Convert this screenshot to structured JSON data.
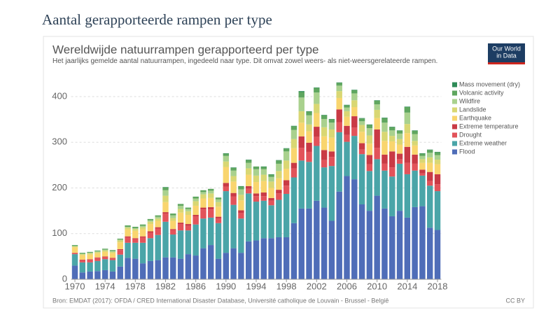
{
  "page_title": "Aantal gerapporteerde rampen per type",
  "chart_data": {
    "type": "bar",
    "stacked": true,
    "title": "Wereldwijde natuurrampen gerapporteerd per type",
    "subtitle": "Het jaarlijks gemelde aantal natuurrampen, ingedeeld naar type. Dit omvat zowel weers- als niet-weersgerelateerde rampen.",
    "logo": [
      "Our World",
      "in Data"
    ],
    "source": "Bron: EMDAT (2017): OFDA / CRED International Disaster Database, Université catholique de Louvain - Brussel - België",
    "license": "CC BY",
    "grid": true,
    "legend": "right",
    "x": [
      1970,
      1971,
      1972,
      1973,
      1974,
      1975,
      1976,
      1977,
      1978,
      1979,
      1980,
      1981,
      1982,
      1983,
      1984,
      1985,
      1986,
      1987,
      1988,
      1989,
      1990,
      1991,
      1992,
      1993,
      1994,
      1995,
      1996,
      1997,
      1998,
      1999,
      2000,
      2001,
      2002,
      2003,
      2004,
      2005,
      2006,
      2007,
      2008,
      2009,
      2010,
      2011,
      2012,
      2013,
      2014,
      2015,
      2016,
      2017,
      2018
    ],
    "xlim": [
      1969.5,
      2018.5
    ],
    "xticks": [
      1970,
      1974,
      1978,
      1982,
      1986,
      1990,
      1994,
      1998,
      2002,
      2006,
      2010,
      2014,
      2018
    ],
    "ylim": [
      0,
      440
    ],
    "yticks": [
      0,
      100,
      200,
      300,
      400
    ],
    "series": [
      {
        "name": "Flood",
        "color": "#4f6db8",
        "values": [
          30,
          15,
          17,
          18,
          20,
          17,
          28,
          47,
          45,
          35,
          40,
          42,
          48,
          48,
          45,
          55,
          52,
          68,
          75,
          45,
          58,
          68,
          58,
          83,
          85,
          90,
          90,
          92,
          92,
          123,
          155,
          155,
          172,
          157,
          128,
          192,
          226,
          219,
          164,
          150,
          183,
          155,
          138,
          150,
          135,
          158,
          160,
          113,
          108
        ]
      },
      {
        "name": "Extreme weather",
        "color": "#4aa5a8",
        "values": [
          25,
          22,
          20,
          22,
          24,
          25,
          26,
          33,
          35,
          45,
          50,
          55,
          78,
          50,
          62,
          52,
          68,
          65,
          60,
          78,
          135,
          95,
          75,
          105,
          85,
          82,
          72,
          82,
          95,
          100,
          105,
          102,
          120,
          88,
          120,
          130,
          75,
          95,
          110,
          87,
          80,
          83,
          87,
          103,
          95,
          80,
          67,
          92,
          85
        ]
      },
      {
        "name": "Drought",
        "color": "#e2535a",
        "values": [
          3,
          5,
          6,
          7,
          5,
          4,
          10,
          12,
          8,
          12,
          12,
          14,
          18,
          10,
          14,
          10,
          18,
          20,
          18,
          10,
          10,
          18,
          12,
          10,
          12,
          10,
          10,
          14,
          18,
          20,
          28,
          22,
          20,
          16,
          20,
          22,
          15,
          18,
          10,
          15,
          25,
          15,
          20,
          10,
          25,
          15,
          5,
          10,
          15
        ]
      },
      {
        "name": "Extreme temperature",
        "color": "#c93a45",
        "values": [
          0,
          1,
          1,
          1,
          1,
          1,
          2,
          2,
          2,
          2,
          3,
          3,
          3,
          2,
          3,
          4,
          3,
          4,
          5,
          4,
          8,
          8,
          6,
          6,
          6,
          8,
          6,
          8,
          12,
          12,
          25,
          20,
          22,
          22,
          12,
          28,
          20,
          25,
          14,
          20,
          40,
          20,
          35,
          12,
          35,
          20,
          8,
          20,
          22
        ]
      },
      {
        "name": "Earthquake",
        "color": "#f9d56e",
        "values": [
          12,
          10,
          10,
          9,
          10,
          10,
          15,
          15,
          16,
          15,
          16,
          14,
          22,
          18,
          22,
          20,
          20,
          20,
          20,
          22,
          35,
          25,
          22,
          25,
          25,
          25,
          22,
          25,
          25,
          32,
          30,
          25,
          30,
          30,
          30,
          25,
          20,
          20,
          25,
          25,
          25,
          30,
          22,
          20,
          30,
          20,
          15,
          20,
          22
        ]
      },
      {
        "name": "Landslide",
        "color": "#d9d773",
        "values": [
          2,
          2,
          3,
          3,
          3,
          3,
          4,
          4,
          4,
          5,
          5,
          5,
          14,
          6,
          8,
          8,
          10,
          9,
          10,
          10,
          12,
          12,
          12,
          14,
          14,
          14,
          14,
          16,
          18,
          20,
          25,
          15,
          20,
          20,
          18,
          15,
          12,
          15,
          15,
          18,
          18,
          20,
          12,
          12,
          20,
          10,
          8,
          12,
          10
        ]
      },
      {
        "name": "Wildfire",
        "color": "#a9d18e",
        "values": [
          1,
          1,
          1,
          1,
          2,
          2,
          2,
          2,
          2,
          3,
          3,
          4,
          12,
          6,
          7,
          5,
          6,
          5,
          6,
          6,
          12,
          12,
          12,
          12,
          14,
          12,
          10,
          16,
          20,
          20,
          30,
          20,
          25,
          18,
          15,
          12,
          8,
          15,
          8,
          16,
          12,
          20,
          12,
          12,
          25,
          15,
          7,
          10,
          10
        ]
      },
      {
        "name": "Volcanic activity",
        "color": "#5fa65f",
        "values": [
          2,
          2,
          2,
          2,
          2,
          2,
          2,
          3,
          3,
          3,
          3,
          3,
          6,
          4,
          4,
          3,
          4,
          4,
          4,
          4,
          5,
          6,
          6,
          6,
          6,
          5,
          5,
          7,
          6,
          8,
          12,
          8,
          10,
          8,
          7,
          6,
          5,
          7,
          6,
          7,
          8,
          10,
          7,
          6,
          12,
          7,
          5,
          6,
          6
        ]
      },
      {
        "name": "Mass movement (dry)",
        "color": "#2e8b57",
        "values": [
          0,
          0,
          0,
          0,
          0,
          0,
          0,
          0,
          0,
          0,
          0,
          0,
          1,
          0,
          0,
          0,
          0,
          0,
          0,
          0,
          1,
          1,
          1,
          1,
          0,
          1,
          1,
          1,
          1,
          1,
          2,
          1,
          1,
          1,
          1,
          1,
          1,
          1,
          1,
          1,
          1,
          1,
          1,
          1,
          1,
          1,
          1,
          1,
          1
        ]
      }
    ]
  }
}
